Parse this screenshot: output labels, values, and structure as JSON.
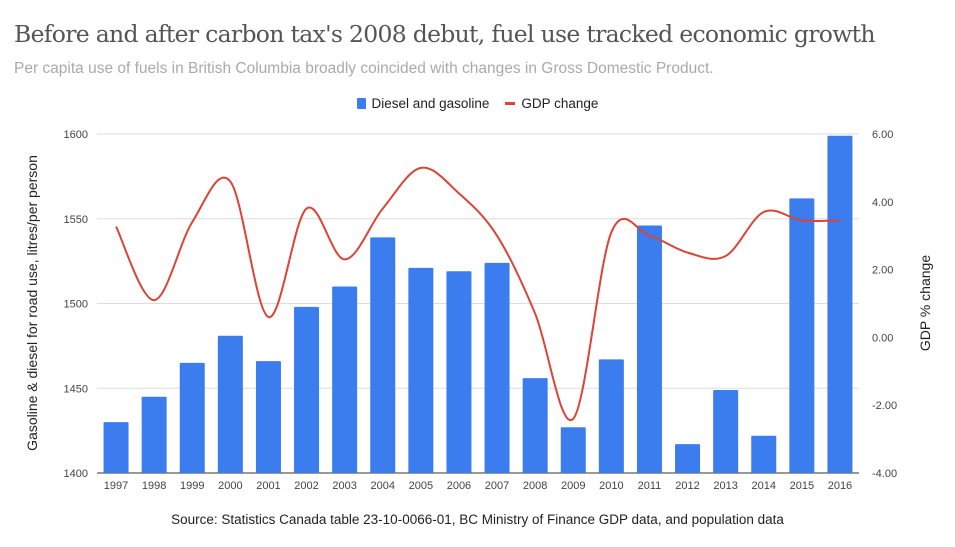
{
  "chart_data": {
    "type": "bar+line",
    "title": "Before and after carbon tax's 2008 debut, fuel use tracked economic growth",
    "subtitle": "Per capita use of fuels in British Columbia broadly coincided with changes in Gross Domestic Product.",
    "source": "Source: Statistics Canada table 23-10-0066-01, BC Ministry of Finance GDP data, and population data",
    "categories": [
      "1997",
      "1998",
      "1999",
      "2000",
      "2001",
      "2002",
      "2003",
      "2004",
      "2005",
      "2006",
      "2007",
      "2008",
      "2009",
      "2010",
      "2011",
      "2012",
      "2013",
      "2014",
      "2015",
      "2016"
    ],
    "series": [
      {
        "name": "Diesel and gasoline",
        "type": "bar",
        "axis": "left",
        "color": "#3b7cef",
        "values": [
          1430,
          1445,
          1465,
          1481,
          1466,
          1498,
          1510,
          1539,
          1521,
          1519,
          1524,
          1456,
          1427,
          1467,
          1546,
          1417,
          1449,
          1422,
          1562,
          1599
        ]
      },
      {
        "name": "GDP change",
        "type": "line",
        "axis": "right",
        "color": "#db4437",
        "values": [
          3.27,
          1.1,
          3.4,
          4.6,
          0.6,
          3.8,
          2.3,
          3.8,
          5.0,
          4.25,
          3.0,
          0.7,
          -2.4,
          3.1,
          3.0,
          2.5,
          2.4,
          3.7,
          3.45,
          3.45
        ]
      }
    ],
    "ylabel_left": "Gasoline & diesel for road use, litres/per person",
    "ylabel_right": "GDP % change",
    "ylim_left": [
      1400,
      1600
    ],
    "yticks_left": [
      "1400",
      "1450",
      "1500",
      "1550",
      "1600"
    ],
    "ylim_right": [
      -4,
      6
    ],
    "yticks_right": [
      "-4.00",
      "-2.00",
      "0.00",
      "2.00",
      "4.00",
      "6.00"
    ],
    "grid": true,
    "legend_position": "top"
  }
}
